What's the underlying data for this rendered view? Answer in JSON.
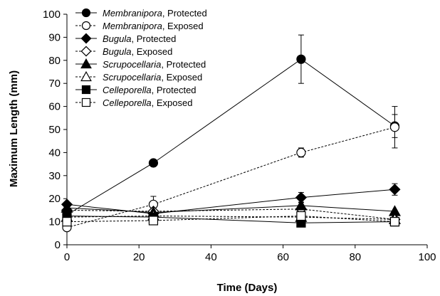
{
  "chart_data": {
    "type": "line",
    "title": "",
    "xlabel": "Time (Days)",
    "ylabel": "Maximum Length (mm)",
    "xlim": [
      0,
      100
    ],
    "ylim": [
      0,
      100
    ],
    "xticks": [
      0,
      20,
      40,
      60,
      80,
      100
    ],
    "yticks": [
      0,
      10,
      20,
      30,
      40,
      50,
      60,
      70,
      80,
      90,
      100
    ],
    "grid": false,
    "legend_position": "top-left",
    "x": [
      0,
      24,
      65,
      91
    ],
    "series": [
      {
        "name": "Membranipora",
        "label_suffix": ", Protected",
        "marker": "circle",
        "filled": true,
        "dashed": false,
        "values": [
          13,
          35.5,
          80.5,
          51.5
        ],
        "errors": [
          null,
          null,
          10.5,
          5
        ]
      },
      {
        "name": "Membranipora",
        "label_suffix": ", Exposed",
        "marker": "circle",
        "filled": false,
        "dashed": true,
        "values": [
          7.5,
          17.5,
          40,
          51
        ],
        "errors": [
          null,
          3.5,
          2,
          9
        ]
      },
      {
        "name": "Bugula",
        "label_suffix": ", Protected",
        "marker": "diamond",
        "filled": true,
        "dashed": false,
        "values": [
          17.5,
          13.5,
          20.5,
          24
        ],
        "errors": [
          null,
          null,
          2.2,
          2.5
        ]
      },
      {
        "name": "Bugula",
        "label_suffix": ", Exposed",
        "marker": "diamond",
        "filled": false,
        "dashed": true,
        "values": [
          15,
          14.5,
          15.5,
          11
        ],
        "errors": [
          null,
          null,
          null,
          null
        ]
      },
      {
        "name": "Scrupocellaria",
        "label_suffix": ", Protected",
        "marker": "triangle",
        "filled": true,
        "dashed": false,
        "values": [
          16,
          14,
          17,
          14.5
        ],
        "errors": [
          null,
          null,
          1.5,
          null
        ]
      },
      {
        "name": "Scrupocellaria",
        "label_suffix": ", Exposed",
        "marker": "triangle",
        "filled": false,
        "dashed": true,
        "values": [
          12,
          12.5,
          12,
          11
        ],
        "errors": [
          null,
          null,
          null,
          null
        ]
      },
      {
        "name": "Celleporella",
        "label_suffix": ", Protected",
        "marker": "square",
        "filled": true,
        "dashed": false,
        "values": [
          12.5,
          12,
          9.5,
          10
        ],
        "errors": [
          null,
          null,
          null,
          null
        ]
      },
      {
        "name": "Celleporella",
        "label_suffix": ", Exposed",
        "marker": "square",
        "filled": false,
        "dashed": true,
        "values": [
          10,
          10.5,
          12.5,
          10
        ],
        "errors": [
          null,
          null,
          1.5,
          null
        ]
      }
    ]
  }
}
